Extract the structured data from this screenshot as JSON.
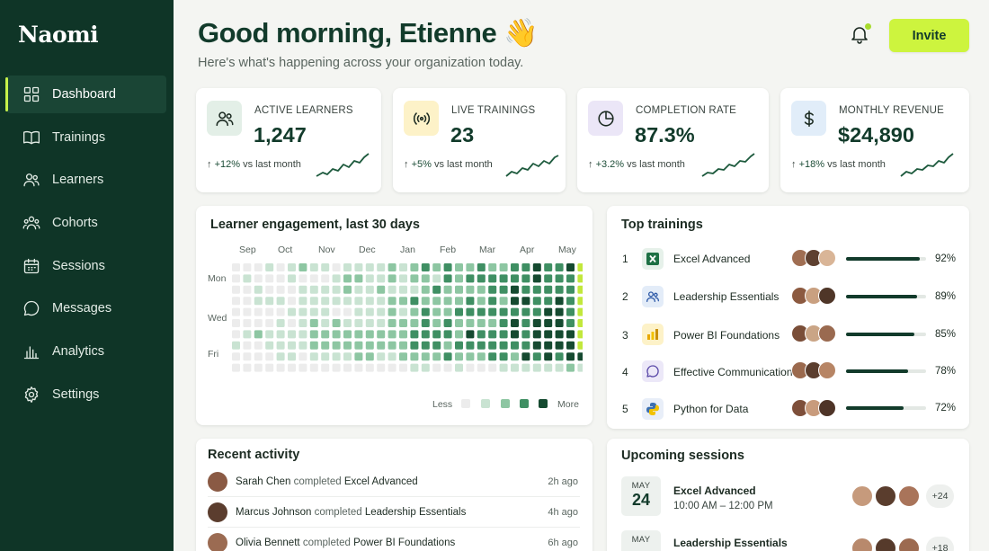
{
  "app": {
    "brand": "Naomi"
  },
  "sidebar": {
    "items": [
      {
        "label": "Dashboard",
        "icon": "grid-icon",
        "active": true
      },
      {
        "label": "Trainings",
        "icon": "book-icon"
      },
      {
        "label": "Learners",
        "icon": "users-icon"
      },
      {
        "label": "Cohorts",
        "icon": "group-icon"
      },
      {
        "label": "Sessions",
        "icon": "calendar-icon"
      },
      {
        "label": "Messages",
        "icon": "chat-icon"
      },
      {
        "label": "Analytics",
        "icon": "bar-chart-icon"
      },
      {
        "label": "Settings",
        "icon": "gear-icon"
      }
    ]
  },
  "header": {
    "greeting": "Good morning, Etienne 👋",
    "subtitle": "Here's what's happening across your organization today.",
    "invite_label": "Invite",
    "notification_dot_color": "#a7db2e"
  },
  "stats": [
    {
      "label": "ACTIVE LEARNERS",
      "value": "1,247",
      "change": "+12%",
      "period": "vs last month",
      "icon": "users-icon",
      "icon_bg": "#e3efe7"
    },
    {
      "label": "LIVE TRAININGS",
      "value": "23",
      "change": "+5%",
      "period": "vs last month",
      "icon": "broadcast-icon",
      "icon_bg": "#fdf2c8"
    },
    {
      "label": "COMPLETION RATE",
      "value": "87.3%",
      "change": "+3.2%",
      "period": "vs last month",
      "icon": "pie-chart-icon",
      "icon_bg": "#ebe6f7"
    },
    {
      "label": "MONTHLY REVENUE",
      "value": "$24,890",
      "change": "+18%",
      "period": "vs last month",
      "icon": "dollar-icon",
      "icon_bg": "#e1edf9"
    }
  ],
  "engagement": {
    "title": "Learner engagement, last 30 days",
    "months": [
      "Sep",
      "Oct",
      "Nov",
      "Dec",
      "Jan",
      "Feb",
      "Mar",
      "Apr",
      "May"
    ],
    "days": [
      "Mon",
      "Wed",
      "Fri"
    ],
    "legend_less": "Less",
    "legend_more": "More",
    "scale_colors": [
      "#ececec",
      "#c9e3d2",
      "#8dc6a2",
      "#3f8f63",
      "#154a30"
    ],
    "highlight_color": "#c2e83c"
  },
  "top_trainings": {
    "title": "Top trainings",
    "items": [
      {
        "rank": "1",
        "name": "Excel Advanced",
        "pct": "92%",
        "value": 0.92,
        "icon": "excel-icon",
        "icon_glyph": "X",
        "icon_bg": "#e6f1ea",
        "icon_color": "#1d7044"
      },
      {
        "rank": "2",
        "name": "Leadership Essentials",
        "pct": "89%",
        "value": 0.89,
        "icon": "users-icon",
        "icon_glyph": "",
        "icon_bg": "#e3ecf8",
        "icon_color": "#2e5aa8"
      },
      {
        "rank": "3",
        "name": "Power BI Foundations",
        "pct": "85%",
        "value": 0.85,
        "icon": "power-bi-icon",
        "icon_glyph": "",
        "icon_bg": "#fdf2c8",
        "icon_color": "#d9a400"
      },
      {
        "rank": "4",
        "name": "Effective Communication",
        "pct": "78%",
        "value": 0.78,
        "icon": "chat-icon",
        "icon_glyph": "",
        "icon_bg": "#ece8f8",
        "icon_color": "#5a49a8"
      },
      {
        "rank": "5",
        "name": "Python for Data",
        "pct": "72%",
        "value": 0.72,
        "icon": "python-icon",
        "icon_glyph": "",
        "icon_bg": "#e8eef8",
        "icon_color": "#3b6fb0"
      }
    ]
  },
  "recent_activity": {
    "title": "Recent activity",
    "items": [
      {
        "name": "Sarah Chen",
        "verb": "completed",
        "course": "Excel Advanced",
        "time": "2h ago",
        "avatar_color": "#8a5a44"
      },
      {
        "name": "Marcus Johnson",
        "verb": "completed",
        "course": "Leadership Essentials",
        "time": "4h ago",
        "avatar_color": "#5b3d2e"
      },
      {
        "name": "Olivia Bennett",
        "verb": "completed",
        "course": "Power BI Foundations",
        "time": "6h ago",
        "avatar_color": "#9b6b52"
      }
    ]
  },
  "upcoming_sessions": {
    "title": "Upcoming sessions",
    "items": [
      {
        "month": "MAY",
        "day": "24",
        "name": "Excel Advanced",
        "time": "10:00 AM – 12:00 PM",
        "more": "+24"
      },
      {
        "month": "MAY",
        "day": "",
        "name": "Leadership Essentials",
        "time": "",
        "more": "+18"
      }
    ]
  }
}
